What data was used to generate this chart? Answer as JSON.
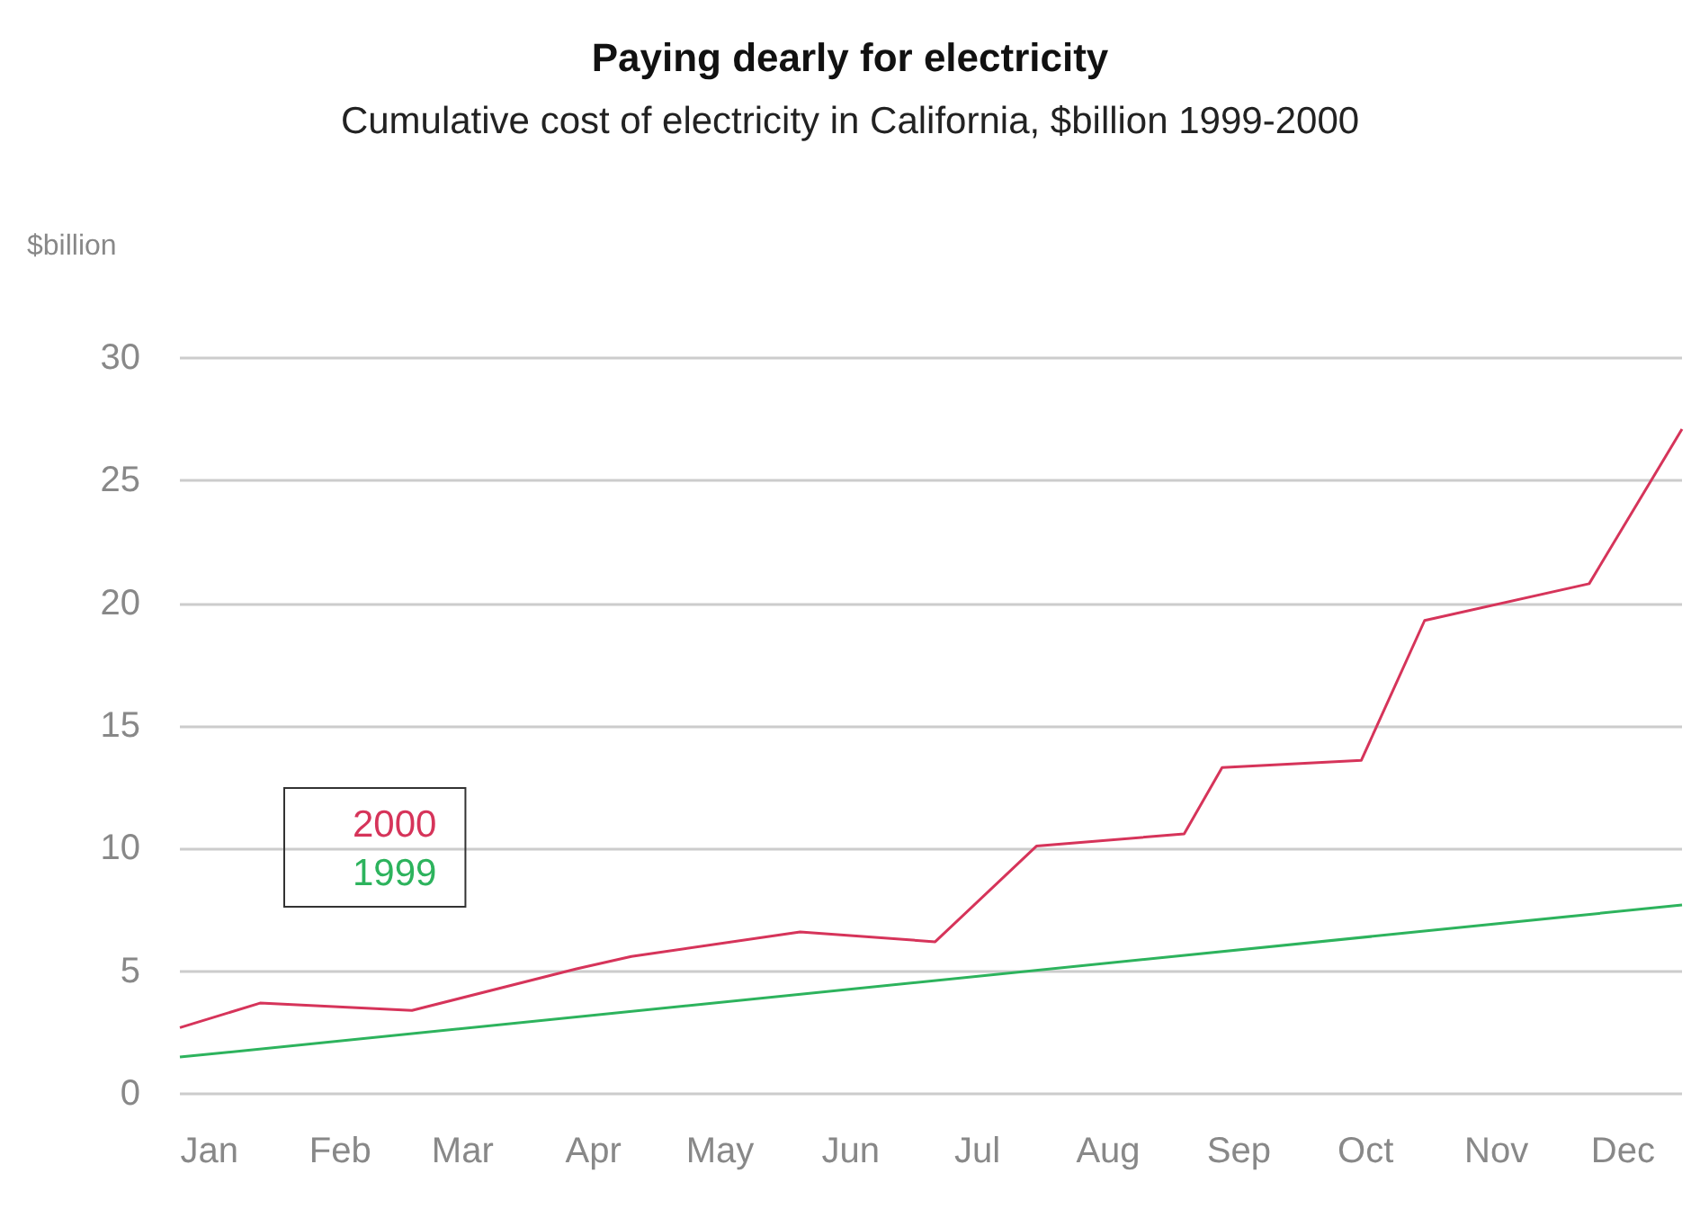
{
  "chart_data": {
    "type": "line",
    "title": "Paying dearly for electricity",
    "subtitle": "Cumulative cost of electricity in California, $billion 1999-2000",
    "ylabel": "$billion",
    "series": [
      {
        "name": "2000",
        "color": "#d6345a",
        "x": [
          "--01-08",
          "--01-27",
          "--03-03",
          "--04-11",
          "--04-24",
          "--06-03",
          "--07-05",
          "--07-29",
          "--09-02",
          "--09-11",
          "--10-14",
          "--10-29",
          "--12-07",
          "--12-29"
        ],
        "values": [
          2.7,
          3.7,
          3.4,
          5.1,
          5.6,
          6.6,
          6.2,
          10.1,
          10.6,
          13.3,
          13.6,
          19.3,
          20.8,
          27.1
        ]
      },
      {
        "name": "1999",
        "color": "#2db35d",
        "x": [
          "--01-08",
          "--12-29"
        ],
        "values": [
          1.5,
          7.7
        ]
      }
    ],
    "xlim": [
      "--01-08",
      "--12-29"
    ],
    "xticks": [
      {
        "value": "--01-15",
        "label": "Jan"
      },
      {
        "value": "--02-15",
        "label": "Feb"
      },
      {
        "value": "--03-15",
        "label": "Mar"
      },
      {
        "value": "--04-15",
        "label": "Apr"
      },
      {
        "value": "--05-15",
        "label": "May"
      },
      {
        "value": "--06-15",
        "label": "Jun"
      },
      {
        "value": "--07-15",
        "label": "Jul"
      },
      {
        "value": "--08-15",
        "label": "Aug"
      },
      {
        "value": "--09-15",
        "label": "Sep"
      },
      {
        "value": "--10-15",
        "label": "Oct"
      },
      {
        "value": "--11-15",
        "label": "Nov"
      },
      {
        "value": "--12-15",
        "label": "Dec"
      }
    ],
    "ylim": [
      0,
      30
    ],
    "yticks": [
      0,
      5,
      10,
      15,
      20,
      25,
      30
    ],
    "grid": "y",
    "legend": "left",
    "marker": "none",
    "line_style": "solid"
  }
}
